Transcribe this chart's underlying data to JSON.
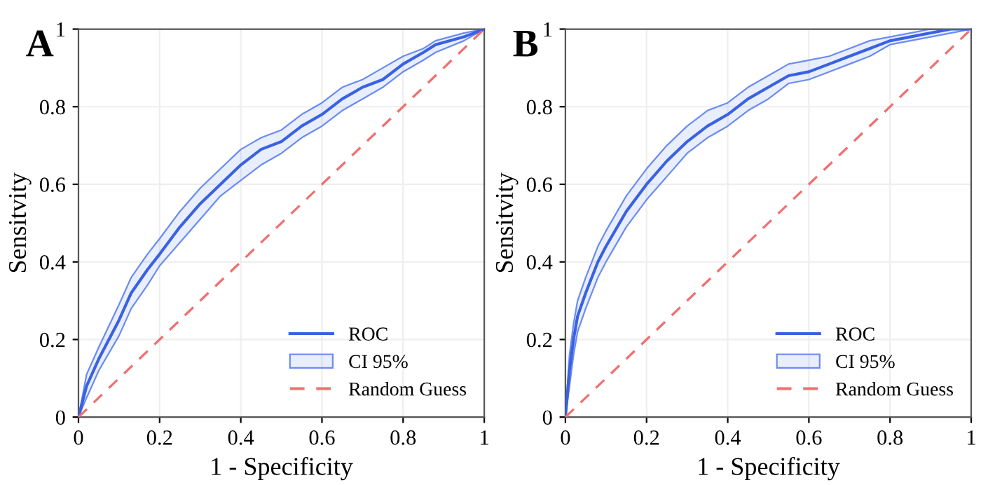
{
  "chart_data": [
    {
      "type": "line",
      "title": "A",
      "xlabel": "1 - Specificity",
      "ylabel": "Sensitvity",
      "xlim": [
        0,
        1
      ],
      "ylim": [
        0,
        1
      ],
      "xticks": [
        0,
        0.2,
        0.4,
        0.6,
        0.8,
        1
      ],
      "yticks": [
        0,
        0.2,
        0.4,
        0.6,
        0.8,
        1
      ],
      "grid": true,
      "legend": "bottom right",
      "series": [
        {
          "name": "ROC",
          "type": "line",
          "color": "#3a62e0",
          "line_style": "solid",
          "x": [
            0,
            0.02,
            0.05,
            0.1,
            0.13,
            0.17,
            0.2,
            0.25,
            0.3,
            0.35,
            0.4,
            0.45,
            0.5,
            0.55,
            0.6,
            0.65,
            0.7,
            0.75,
            0.8,
            0.85,
            0.88,
            0.95,
            1
          ],
          "values": [
            0,
            0.08,
            0.15,
            0.25,
            0.32,
            0.38,
            0.42,
            0.49,
            0.55,
            0.6,
            0.65,
            0.69,
            0.71,
            0.75,
            0.78,
            0.82,
            0.85,
            0.87,
            0.91,
            0.94,
            0.96,
            0.98,
            1
          ],
          "lower": [
            0,
            0.05,
            0.12,
            0.21,
            0.28,
            0.34,
            0.39,
            0.45,
            0.51,
            0.57,
            0.61,
            0.65,
            0.68,
            0.72,
            0.75,
            0.79,
            0.82,
            0.85,
            0.89,
            0.92,
            0.94,
            0.97,
            1
          ],
          "upper": [
            0,
            0.11,
            0.18,
            0.29,
            0.36,
            0.42,
            0.46,
            0.53,
            0.59,
            0.64,
            0.69,
            0.72,
            0.74,
            0.78,
            0.81,
            0.85,
            0.87,
            0.9,
            0.93,
            0.95,
            0.97,
            0.99,
            1
          ]
        },
        {
          "name": "CI 95%",
          "type": "area",
          "color": "#6b8cf0"
        },
        {
          "name": "Random Guess",
          "type": "line",
          "color": "#f07070",
          "line_style": "dashed",
          "x": [
            0,
            1
          ],
          "values": [
            0,
            1
          ]
        }
      ]
    },
    {
      "type": "line",
      "title": "B",
      "xlabel": "1 - Specificity",
      "ylabel": "Sensitvity",
      "xlim": [
        0,
        1
      ],
      "ylim": [
        0,
        1
      ],
      "xticks": [
        0,
        0.2,
        0.4,
        0.6,
        0.8,
        1
      ],
      "yticks": [
        0,
        0.2,
        0.4,
        0.6,
        0.8,
        1
      ],
      "grid": true,
      "legend": "bottom right",
      "series": [
        {
          "name": "ROC",
          "type": "line",
          "color": "#3a62e0",
          "line_style": "solid",
          "x": [
            0,
            0.01,
            0.02,
            0.03,
            0.05,
            0.08,
            0.1,
            0.15,
            0.2,
            0.25,
            0.3,
            0.35,
            0.4,
            0.45,
            0.5,
            0.55,
            0.6,
            0.65,
            0.7,
            0.75,
            0.8,
            0.85,
            0.9,
            0.95,
            1
          ],
          "values": [
            0,
            0.12,
            0.2,
            0.26,
            0.32,
            0.4,
            0.44,
            0.53,
            0.6,
            0.66,
            0.71,
            0.75,
            0.78,
            0.82,
            0.85,
            0.88,
            0.89,
            0.91,
            0.93,
            0.95,
            0.97,
            0.98,
            0.99,
            1,
            1
          ],
          "lower": [
            0,
            0.08,
            0.16,
            0.22,
            0.28,
            0.36,
            0.4,
            0.49,
            0.56,
            0.62,
            0.68,
            0.72,
            0.75,
            0.79,
            0.82,
            0.86,
            0.87,
            0.89,
            0.91,
            0.93,
            0.96,
            0.97,
            0.98,
            0.99,
            1
          ],
          "upper": [
            0,
            0.16,
            0.24,
            0.3,
            0.36,
            0.44,
            0.48,
            0.57,
            0.64,
            0.7,
            0.75,
            0.79,
            0.81,
            0.85,
            0.88,
            0.91,
            0.92,
            0.93,
            0.95,
            0.97,
            0.98,
            0.99,
            1,
            1,
            1
          ]
        },
        {
          "name": "CI 95%",
          "type": "area",
          "color": "#6b8cf0"
        },
        {
          "name": "Random Guess",
          "type": "line",
          "color": "#f07070",
          "line_style": "dashed",
          "x": [
            0,
            1
          ],
          "values": [
            0,
            1
          ]
        }
      ]
    }
  ]
}
